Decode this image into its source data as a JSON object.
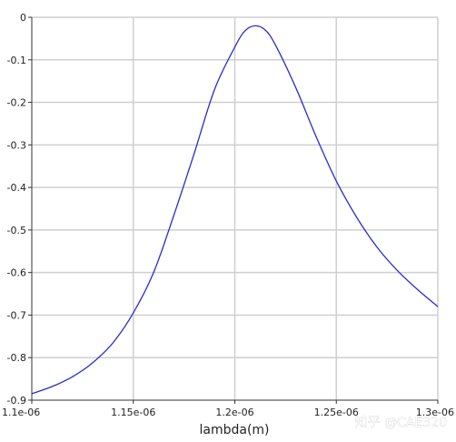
{
  "chart_data": {
    "type": "line",
    "title": "",
    "xlabel": "lambda(m)",
    "ylabel": "",
    "xlim": [
      1.1e-06,
      1.3e-06
    ],
    "ylim": [
      -0.9,
      0
    ],
    "grid": true,
    "x_ticks": [
      {
        "value": 1.1e-06,
        "label": "1.1e-06"
      },
      {
        "value": 1.15e-06,
        "label": "1.15e-06"
      },
      {
        "value": 1.2e-06,
        "label": "1.2e-06"
      },
      {
        "value": 1.25e-06,
        "label": "1.25e-06"
      },
      {
        "value": 1.3e-06,
        "label": "1.3e-06"
      }
    ],
    "y_ticks": [
      {
        "value": 0,
        "label": "0"
      },
      {
        "value": -0.1,
        "label": "-0.1"
      },
      {
        "value": -0.2,
        "label": "-0.2"
      },
      {
        "value": -0.3,
        "label": "-0.3"
      },
      {
        "value": -0.4,
        "label": "-0.4"
      },
      {
        "value": -0.5,
        "label": "-0.5"
      },
      {
        "value": -0.6,
        "label": "-0.6"
      },
      {
        "value": -0.7,
        "label": "-0.7"
      },
      {
        "value": -0.8,
        "label": "-0.8"
      },
      {
        "value": -0.9,
        "label": "-0.9"
      }
    ],
    "series": [
      {
        "color": "#2b2bd0",
        "x": [
          1.1e-06,
          1.11e-06,
          1.12e-06,
          1.13e-06,
          1.14e-06,
          1.15e-06,
          1.16e-06,
          1.17e-06,
          1.18e-06,
          1.19e-06,
          1.2e-06,
          1.205e-06,
          1.21e-06,
          1.215e-06,
          1.22e-06,
          1.23e-06,
          1.24e-06,
          1.25e-06,
          1.26e-06,
          1.27e-06,
          1.28e-06,
          1.29e-06,
          1.3e-06
        ],
        "y": [
          -0.885,
          -0.868,
          -0.845,
          -0.812,
          -0.765,
          -0.695,
          -0.6,
          -0.465,
          -0.32,
          -0.17,
          -0.07,
          -0.032,
          -0.02,
          -0.03,
          -0.065,
          -0.165,
          -0.28,
          -0.385,
          -0.47,
          -0.54,
          -0.595,
          -0.64,
          -0.68
        ]
      }
    ]
  },
  "watermark": "知乎 @CAE320"
}
